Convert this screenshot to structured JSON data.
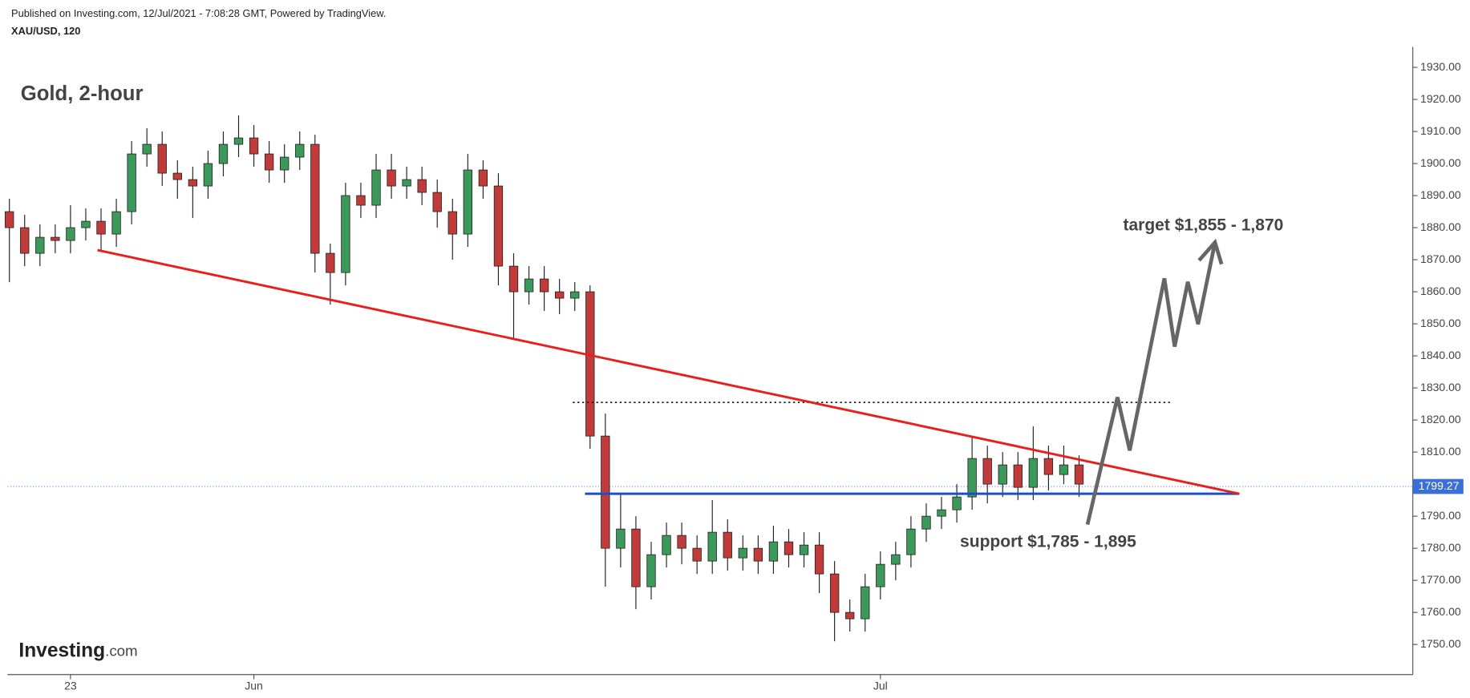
{
  "header": {
    "published": "Published on Investing.com, 12/Jul/2021 - 7:08:28 GMT, Powered by TradingView.",
    "symbol": "XAU/USD, 120"
  },
  "logo": {
    "brand": "Investing",
    "suffix": ".com"
  },
  "chart_data": {
    "type": "candlestick",
    "title": "Gold, 2-hour",
    "annotations": {
      "target": "target $1,855 - 1,870",
      "support": "support $1,785 - 1,895"
    },
    "categories": [
      null,
      null,
      null,
      null,
      "23",
      null,
      null,
      null,
      null,
      null,
      null,
      null,
      null,
      null,
      null,
      null,
      "Jun",
      null,
      null,
      null,
      null,
      null,
      null,
      null,
      null,
      null,
      null,
      null,
      null,
      null,
      null,
      null,
      null,
      null,
      null,
      null,
      null,
      null,
      null,
      null,
      null,
      null,
      null,
      null,
      null,
      null,
      null,
      null,
      null,
      null,
      null,
      null,
      null,
      null,
      null,
      null,
      null,
      "Jul",
      null,
      null,
      null,
      null,
      null,
      null,
      null,
      null,
      null,
      null,
      null,
      null,
      null
    ],
    "open": [
      1885,
      1880,
      1872,
      1877,
      1876,
      1880,
      1882,
      1878,
      1885,
      1903,
      1906,
      1897,
      1895,
      1893,
      1900,
      1906,
      1908,
      1903,
      1898,
      1902,
      1906,
      1872,
      1866,
      1890,
      1887,
      1898,
      1893,
      1895,
      1891,
      1885,
      1878,
      1898,
      1893,
      1868,
      1860,
      1864,
      1860,
      1858,
      1860,
      1815,
      1780,
      1786,
      1768,
      1778,
      1784,
      1780,
      1776,
      1785,
      1777,
      1780,
      1776,
      1782,
      1778,
      1781,
      1772,
      1760,
      1758,
      1768,
      1775,
      1778,
      1786,
      1790,
      1792,
      1796,
      1808,
      1800,
      1806,
      1799,
      1808,
      1803,
      1806
    ],
    "high": [
      1889,
      1884,
      1881,
      1881,
      1887,
      1886,
      1886,
      1889,
      1907,
      1911,
      1910,
      1901,
      1899,
      1904,
      1910,
      1915,
      1912,
      1907,
      1906,
      1910,
      1909,
      1875,
      1894,
      1894,
      1903,
      1903,
      1899,
      1899,
      1895,
      1889,
      1903,
      1901,
      1897,
      1872,
      1868,
      1868,
      1864,
      1863,
      1862,
      1822,
      1797,
      1790,
      1782,
      1788,
      1788,
      1784,
      1795,
      1789,
      1784,
      1784,
      1787,
      1786,
      1785,
      1785,
      1776,
      1764,
      1772,
      1779,
      1782,
      1790,
      1794,
      1796,
      1800,
      1815,
      1812,
      1810,
      1810,
      1818,
      1812,
      1812,
      1809
    ],
    "low": [
      1863,
      1868,
      1868,
      1872,
      1872,
      1876,
      1873,
      1874,
      1881,
      1899,
      1893,
      1889,
      1883,
      1889,
      1896,
      1902,
      1899,
      1894,
      1894,
      1898,
      1866,
      1856,
      1862,
      1883,
      1883,
      1889,
      1889,
      1887,
      1880,
      1870,
      1874,
      1889,
      1862,
      1845,
      1856,
      1854,
      1853,
      1854,
      1811,
      1768,
      1774,
      1761,
      1764,
      1774,
      1775,
      1772,
      1772,
      1773,
      1773,
      1772,
      1772,
      1774,
      1774,
      1766,
      1751,
      1754,
      1754,
      1764,
      1770,
      1774,
      1782,
      1786,
      1788,
      1792,
      1794,
      1796,
      1795,
      1795,
      1798,
      1800,
      1796
    ],
    "close": [
      1880,
      1872,
      1877,
      1876,
      1880,
      1882,
      1878,
      1885,
      1903,
      1906,
      1897,
      1895,
      1893,
      1900,
      1906,
      1908,
      1903,
      1898,
      1902,
      1906,
      1872,
      1866,
      1890,
      1887,
      1898,
      1893,
      1895,
      1891,
      1885,
      1878,
      1898,
      1893,
      1868,
      1860,
      1864,
      1860,
      1858,
      1860,
      1815,
      1780,
      1786,
      1768,
      1778,
      1784,
      1780,
      1776,
      1785,
      1777,
      1780,
      1776,
      1782,
      1778,
      1781,
      1772,
      1760,
      1758,
      1768,
      1775,
      1778,
      1786,
      1790,
      1792,
      1796,
      1808,
      1800,
      1806,
      1799,
      1808,
      1803,
      1806,
      1800
    ],
    "up_color": "#3b9a5a",
    "down_color": "#c23b3b",
    "ylim": [
      1740.6,
      1936.4
    ],
    "yticks": [
      {
        "value": 1750,
        "label": "1750.00"
      },
      {
        "value": 1760,
        "label": "1760.00"
      },
      {
        "value": 1770,
        "label": "1770.00"
      },
      {
        "value": 1780,
        "label": "1780.00"
      },
      {
        "value": 1790,
        "label": "1790.00"
      },
      {
        "value": 1800,
        "label": "1800.00"
      },
      {
        "value": 1810,
        "label": "1810.00"
      },
      {
        "value": 1820,
        "label": "1820.00"
      },
      {
        "value": 1830,
        "label": "1830.00"
      },
      {
        "value": 1840,
        "label": "1840.00"
      },
      {
        "value": 1850,
        "label": "1850.00"
      },
      {
        "value": 1860,
        "label": "1860.00"
      },
      {
        "value": 1870,
        "label": "1870.00"
      },
      {
        "value": 1880,
        "label": "1880.00"
      },
      {
        "value": 1890,
        "label": "1890.00"
      },
      {
        "value": 1900,
        "label": "1900.00"
      },
      {
        "value": 1910,
        "label": "1910.00"
      },
      {
        "value": 1920,
        "label": "1920.00"
      },
      {
        "value": 1930,
        "label": "1930.00"
      }
    ],
    "last_price": 1799.27,
    "trendline": [
      1873,
      1797
    ],
    "trendline_color": "#e8201c",
    "support_line": 1797,
    "support_color": "#1a4fc9",
    "resistance_line": 1825.5,
    "projection": [
      1787.4,
      1827.1,
      1810.5,
      1864.2,
      1842.9,
      1863.1,
      1849.9,
      1875.4,
      1869.8,
      1875.4,
      1868.6
    ],
    "projection_color": "#666666"
  }
}
